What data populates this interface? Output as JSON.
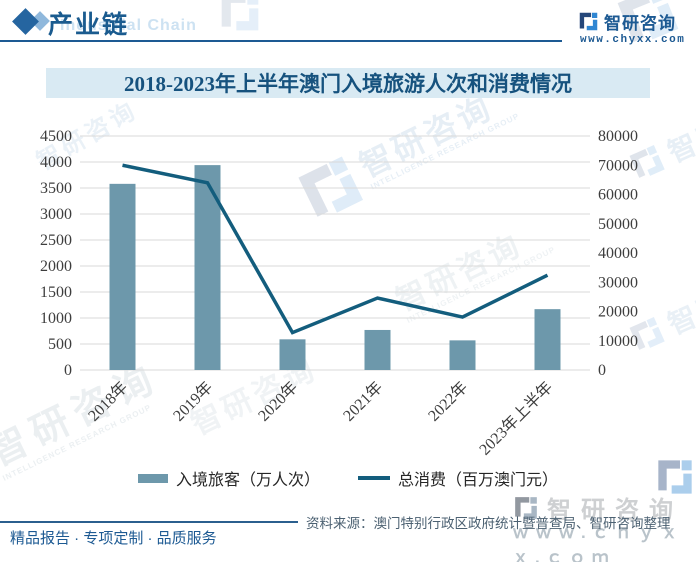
{
  "header": {
    "section_title": "产业链",
    "section_title_en": "Industrial Chain",
    "brand": "智研咨询",
    "website": "www.chyxx.com"
  },
  "title": "2018-2023年上半年澳门入境旅游人次和消费情况",
  "chart_data": {
    "type": "combo",
    "categories": [
      "2018年",
      "2019年",
      "2020年",
      "2021年",
      "2022年",
      "2023年上半年"
    ],
    "series": [
      {
        "name": "入境旅客（万人次）",
        "type": "bar",
        "axis": "left",
        "values": [
          3580,
          3940,
          590,
          770,
          570,
          1170
        ],
        "color": "#6d98ab"
      },
      {
        "name": "总消费（百万澳门元）",
        "type": "line",
        "axis": "right",
        "values": [
          70000,
          64000,
          12800,
          24600,
          18100,
          32400
        ],
        "color": "#135d7d"
      }
    ],
    "left_axis": {
      "min": 0,
      "max": 4500,
      "step": 500
    },
    "right_axis": {
      "min": 0,
      "max": 80000,
      "step": 10000
    },
    "grid": true,
    "gridline_color": "#d9d9d9",
    "axis_text_color": "#3d3d3d",
    "legend_position": "bottom"
  },
  "footer": {
    "tagline": "精品报告 · 专项定制 · 品质服务",
    "source": "资料来源：澳门特别行政区政府统计暨普查局、智研咨询整理",
    "watermark_site": "ｗｗｗ.ｃｈｙｘｘ.ｃｏｍ"
  },
  "watermarks": {
    "brand": "智研咨询",
    "brand_short": "智研",
    "group_en": "INTELLIGENCE RESEARCH GROUP",
    "site": "www.chyxx.com"
  },
  "colors": {
    "accent_blue": "#1d5a93",
    "title_band_bg": "#d9eaf3",
    "title_text": "#16527e",
    "bar": "#6d98ab",
    "line": "#135d7d"
  }
}
